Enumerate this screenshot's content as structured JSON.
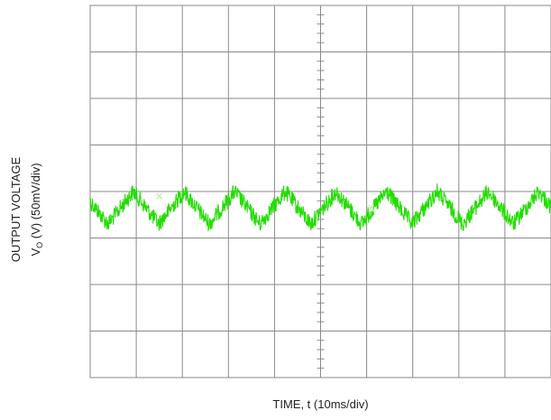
{
  "chart_data": {
    "type": "line",
    "title": "",
    "xlabel": "TIME, t (10ms/div)",
    "ylabel_line1": "OUTPUT VOLTAGE",
    "ylabel_line2_prefix": "V",
    "ylabel_line2_sub": "O",
    "ylabel_line2_suffix": " (V) (50mV/div)",
    "x_divisions": 10,
    "y_divisions": 8,
    "x_unit_per_div_ms": 10,
    "y_unit_per_div_mV": 50,
    "grid": true,
    "series": [
      {
        "color": "#22dd00",
        "waveform": "triangle-ripple",
        "period_div": 1.1,
        "center_div_from_top": 4.35,
        "ripple_pp_div": 0.7,
        "noise_pp_div": 0.35
      }
    ],
    "markers": [
      {
        "x_div": 1.5,
        "y_div_from_top": 4.1
      },
      {
        "x_div": 6.1,
        "y_div_from_top": 4.35
      }
    ]
  }
}
